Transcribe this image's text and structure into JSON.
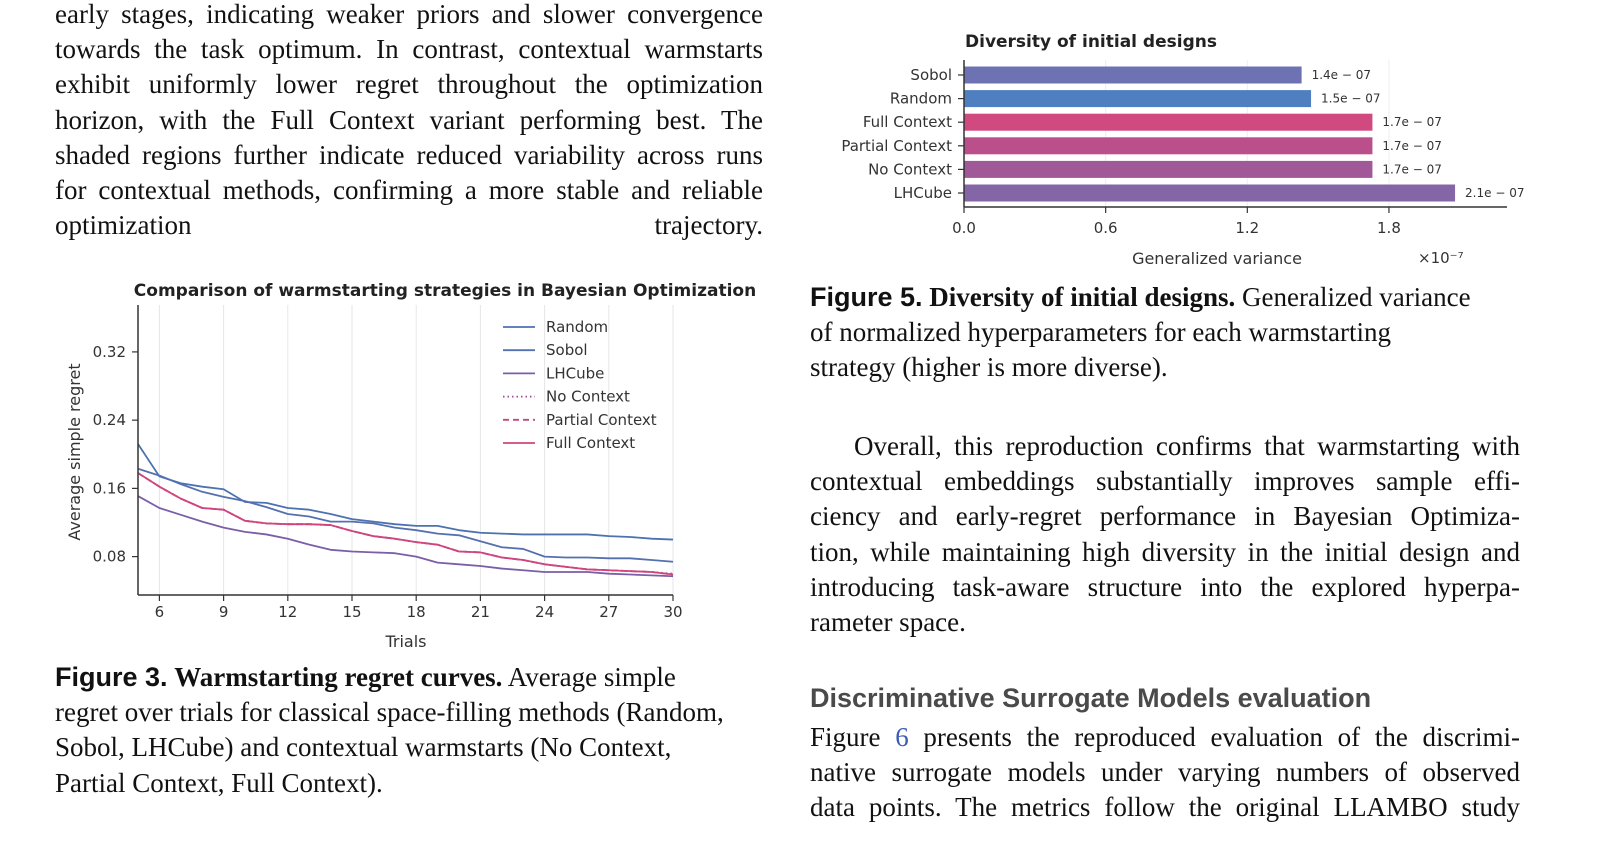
{
  "top_paragraph": {
    "lines": [
      "early stages, indicating weaker priors and slower convergence",
      "towards the task optimum. In contrast, contextual warmstarts",
      "exhibit uniformly lower regret throughout the optimization",
      "horizon, with the Full Context variant performing best. The",
      "shaded regions further indicate reduced variability across runs",
      "for contextual methods, confirming a more stable and reliable",
      "optimization trajectory."
    ]
  },
  "figure3": {
    "label": "Figure 3.",
    "title": "Warmstarting regret curves.",
    "caption_lines": [
      "Average simple",
      "regret over trials for classical space-filling methods (Random,",
      "Sobol, LHCube) and contextual warmstarts (No Context,",
      "Partial Context, Full Context)."
    ]
  },
  "figure5": {
    "label": "Figure 5.",
    "title": "Diversity of initial designs.",
    "caption_lines": [
      "Generalized variance",
      "of normalized hyperparameters for each warmstarting",
      "strategy (higher is more diverse)."
    ]
  },
  "overall_paragraph": {
    "lines": [
      "Overall, this reproduction confirms that warmstarting with",
      "contextual embeddings substantially improves sample effi-",
      "ciency and early-regret performance in Bayesian Optimiza-",
      "tion, while maintaining high diversity in the initial design and",
      "introducing task-aware structure into the explored hyperpa-",
      "rameter space."
    ]
  },
  "section": {
    "heading": "Discriminative Surrogate Models evaluation",
    "lines_prefix": "Figure ",
    "figure_ref": "6",
    "line1_rest": " presents the reproduced evaluation of the discrimi-",
    "lines": [
      "native surrogate models under varying numbers of observed",
      "data points. The metrics follow the original LLAMBO study"
    ]
  },
  "chart_data": [
    {
      "type": "line",
      "title": "Comparison of warmstarting strategies in Bayesian Optimization",
      "xlabel": "Trials",
      "ylabel": "Average simple regret",
      "xlim": [
        5,
        30
      ],
      "ylim": [
        0.035,
        0.375
      ],
      "xticks": [
        6,
        9,
        12,
        15,
        18,
        21,
        24,
        27,
        30
      ],
      "yticks": [
        0.08,
        0.16,
        0.24,
        0.32
      ],
      "ytick_labels": [
        "0.08",
        "0.16",
        "0.24",
        "0.32"
      ],
      "grid": "vertical",
      "legend_position": "top-right",
      "x": [
        5,
        6,
        7,
        8,
        9,
        10,
        11,
        12,
        13,
        14,
        15,
        16,
        17,
        18,
        19,
        20,
        21,
        22,
        23,
        24,
        25,
        26,
        27,
        28,
        29,
        30
      ],
      "series": [
        {
          "name": "Random",
          "color": "#4c72b0",
          "style": "solid",
          "values": [
            0.212,
            0.174,
            0.166,
            0.162,
            0.159,
            0.144,
            0.143,
            0.137,
            0.135,
            0.13,
            0.124,
            0.121,
            0.118,
            0.116,
            0.116,
            0.111,
            0.108,
            0.107,
            0.106,
            0.106,
            0.106,
            0.106,
            0.104,
            0.103,
            0.101,
            0.1
          ]
        },
        {
          "name": "Sobol",
          "color": "#5470b0",
          "style": "solid",
          "values": [
            0.183,
            0.175,
            0.165,
            0.156,
            0.15,
            0.145,
            0.138,
            0.13,
            0.127,
            0.121,
            0.121,
            0.119,
            0.114,
            0.111,
            0.107,
            0.105,
            0.098,
            0.091,
            0.089,
            0.08,
            0.079,
            0.079,
            0.078,
            0.078,
            0.076,
            0.074
          ]
        },
        {
          "name": "LHCube",
          "color": "#7a5ea8",
          "style": "solid",
          "values": [
            0.151,
            0.137,
            0.129,
            0.121,
            0.114,
            0.109,
            0.106,
            0.101,
            0.094,
            0.088,
            0.086,
            0.085,
            0.084,
            0.08,
            0.073,
            0.071,
            0.069,
            0.066,
            0.064,
            0.062,
            0.062,
            0.062,
            0.06,
            0.059,
            0.058,
            0.057
          ]
        },
        {
          "name": "No Context",
          "color": "#9b4c8f",
          "style": "dotted",
          "values": [
            0.178,
            0.162,
            0.148,
            0.137,
            0.135,
            0.122,
            0.119,
            0.118,
            0.118,
            0.117,
            0.11,
            0.104,
            0.101,
            0.097,
            0.094,
            0.086,
            0.085,
            0.079,
            0.076,
            0.071,
            0.068,
            0.065,
            0.064,
            0.063,
            0.062,
            0.06
          ]
        },
        {
          "name": "Partial Context",
          "color": "#c04a80",
          "style": "dashed",
          "values": [
            0.178,
            0.162,
            0.148,
            0.137,
            0.135,
            0.122,
            0.119,
            0.118,
            0.118,
            0.117,
            0.11,
            0.104,
            0.101,
            0.097,
            0.094,
            0.086,
            0.085,
            0.079,
            0.076,
            0.071,
            0.068,
            0.065,
            0.064,
            0.063,
            0.062,
            0.059
          ]
        },
        {
          "name": "Full Context",
          "color": "#d0457e",
          "style": "solid",
          "values": [
            0.178,
            0.162,
            0.148,
            0.137,
            0.135,
            0.122,
            0.119,
            0.118,
            0.118,
            0.117,
            0.11,
            0.104,
            0.101,
            0.097,
            0.094,
            0.086,
            0.085,
            0.079,
            0.076,
            0.071,
            0.068,
            0.065,
            0.064,
            0.063,
            0.062,
            0.059
          ]
        }
      ]
    },
    {
      "type": "bar",
      "orientation": "horizontal",
      "title": "Diversity of initial designs",
      "xlabel": "Generalized variance",
      "x_scale_label": "×10⁻⁷",
      "xlim": [
        0,
        2.3
      ],
      "xticks": [
        0.0,
        0.6,
        1.2,
        1.8
      ],
      "xtick_labels": [
        "0.0",
        "0.6",
        "1.2",
        "1.8"
      ],
      "categories": [
        "Sobol",
        "Random",
        "Full Context",
        "Partial Context",
        "No Context",
        "LHCube"
      ],
      "values": [
        1.43,
        1.47,
        1.73,
        1.73,
        1.73,
        2.08
      ],
      "value_unit": "1e-7",
      "data_labels": [
        "1.4e − 07",
        "1.5e − 07",
        "1.7e − 07",
        "1.7e − 07",
        "1.7e − 07",
        "2.1e − 07"
      ],
      "colors": [
        "#6d73b2",
        "#4f7fc0",
        "#d04a80",
        "#bb4f8c",
        "#a15898",
        "#8466a6"
      ]
    }
  ]
}
